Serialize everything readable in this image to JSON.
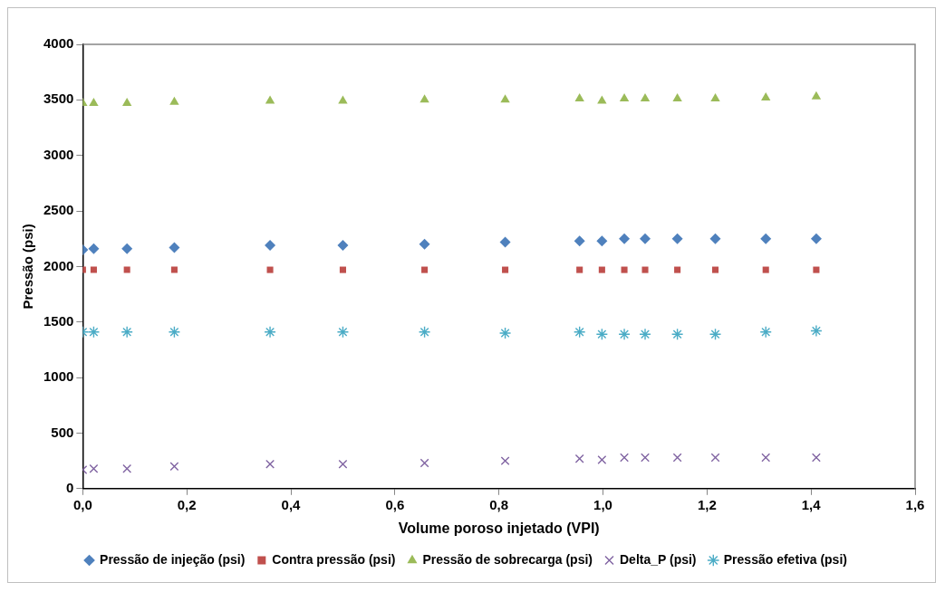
{
  "chart_data": {
    "type": "scatter",
    "xlabel": "Volume poroso injetado (VPI)",
    "ylabel": "Pressão (psi)",
    "x": [
      0,
      0.021,
      0.085,
      0.176,
      0.36,
      0.5,
      0.657,
      0.812,
      0.955,
      0.998,
      1.041,
      1.081,
      1.143,
      1.216,
      1.313,
      1.41
    ],
    "xlim": [
      0,
      1.6
    ],
    "xticks": [
      {
        "value": 0,
        "label": "0,0"
      },
      {
        "value": 0.2,
        "label": "0,2"
      },
      {
        "value": 0.4,
        "label": "0,4"
      },
      {
        "value": 0.6,
        "label": "0,6"
      },
      {
        "value": 0.8,
        "label": "0,8"
      },
      {
        "value": 1,
        "label": "1,0"
      },
      {
        "value": 1.2,
        "label": "1,2"
      },
      {
        "value": 1.4,
        "label": "1,4"
      },
      {
        "value": 1.6,
        "label": "1,6"
      }
    ],
    "ylim": [
      0,
      4000
    ],
    "yticks": [
      0,
      500,
      1000,
      1500,
      2000,
      2500,
      3000,
      3500,
      4000
    ],
    "grid": false,
    "legend": "bottom",
    "series": [
      {
        "name": "Pressão de injeção (psi)",
        "color": "#4f81bd",
        "marker": "diamond",
        "values": [
          2150,
          2160,
          2160,
          2170,
          2190,
          2190,
          2200,
          2220,
          2230,
          2230,
          2250,
          2250,
          2250,
          2250,
          2250,
          2250
        ]
      },
      {
        "name": "Contra pressão (psi)",
        "color": "#c0504d",
        "marker": "square",
        "values": [
          1970,
          1970,
          1970,
          1970,
          1970,
          1970,
          1970,
          1970,
          1970,
          1970,
          1970,
          1970,
          1970,
          1970,
          1970,
          1970
        ]
      },
      {
        "name": "Pressão de sobrecarga (psi)",
        "color": "#9bbb59",
        "marker": "triangle",
        "values": [
          3470,
          3470,
          3470,
          3480,
          3490,
          3490,
          3500,
          3500,
          3510,
          3490,
          3510,
          3510,
          3510,
          3510,
          3520,
          3530
        ]
      },
      {
        "name": "Delta_P (psi)",
        "color": "#8064a2",
        "marker": "cross",
        "values": [
          170,
          180,
          180,
          200,
          220,
          220,
          230,
          250,
          270,
          260,
          280,
          280,
          280,
          280,
          280,
          280
        ]
      },
      {
        "name": "Pressão efetiva (psi)",
        "color": "#4bacc6",
        "values": [
          1410,
          1410,
          1410,
          1410,
          1410,
          1410,
          1410,
          1400,
          1410,
          1390,
          1390,
          1390,
          1390,
          1390,
          1410,
          1420
        ]
      }
    ]
  }
}
